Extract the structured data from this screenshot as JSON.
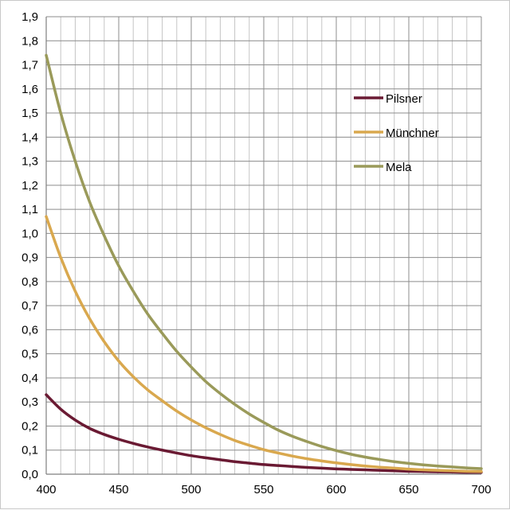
{
  "chart_data": {
    "type": "line",
    "title": "",
    "xlabel": "",
    "ylabel": "",
    "xlim": [
      400,
      700
    ],
    "ylim": [
      0,
      1.9
    ],
    "x_major_step": 50,
    "x_minor_step": 10,
    "y_major_step": 0.1,
    "grid": true,
    "x_tick_labels": [
      "400",
      "450",
      "500",
      "550",
      "600",
      "650",
      "700"
    ],
    "y_tick_labels": [
      "0,0",
      "0,1",
      "0,2",
      "0,3",
      "0,4",
      "0,5",
      "0,6",
      "0,7",
      "0,8",
      "0,9",
      "1,0",
      "1,1",
      "1,2",
      "1,3",
      "1,4",
      "1,5",
      "1,6",
      "1,7",
      "1,8",
      "1,9"
    ],
    "legend_position": "right",
    "x": [
      400,
      410,
      420,
      430,
      440,
      450,
      460,
      470,
      480,
      490,
      500,
      510,
      520,
      530,
      540,
      550,
      560,
      570,
      580,
      590,
      600,
      610,
      620,
      630,
      640,
      650,
      660,
      670,
      680,
      690,
      700
    ],
    "series": [
      {
        "name": "Pilsner",
        "color": "#6a1a33",
        "values": [
          0.33,
          0.27,
          0.225,
          0.19,
          0.165,
          0.145,
          0.128,
          0.113,
          0.1,
          0.088,
          0.077,
          0.068,
          0.06,
          0.052,
          0.046,
          0.04,
          0.036,
          0.032,
          0.028,
          0.025,
          0.022,
          0.02,
          0.018,
          0.016,
          0.014,
          0.012,
          0.011,
          0.01,
          0.009,
          0.008,
          0.008
        ]
      },
      {
        "name": "Münchner",
        "color": "#d9a84e",
        "values": [
          1.07,
          0.9,
          0.76,
          0.645,
          0.55,
          0.47,
          0.405,
          0.35,
          0.305,
          0.262,
          0.225,
          0.193,
          0.165,
          0.14,
          0.12,
          0.102,
          0.088,
          0.075,
          0.064,
          0.055,
          0.047,
          0.04,
          0.034,
          0.029,
          0.025,
          0.021,
          0.018,
          0.016,
          0.014,
          0.012,
          0.011
        ]
      },
      {
        "name": "Mela",
        "color": "#9a9a5a",
        "values": [
          1.74,
          1.5,
          1.3,
          1.13,
          0.99,
          0.865,
          0.76,
          0.665,
          0.585,
          0.51,
          0.445,
          0.385,
          0.335,
          0.29,
          0.25,
          0.215,
          0.183,
          0.157,
          0.135,
          0.115,
          0.098,
          0.083,
          0.071,
          0.061,
          0.052,
          0.045,
          0.039,
          0.034,
          0.03,
          0.026,
          0.023
        ]
      }
    ]
  }
}
